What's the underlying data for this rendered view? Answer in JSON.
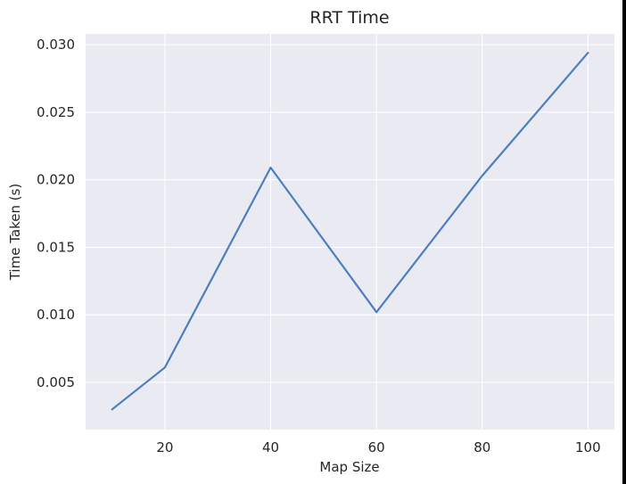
{
  "chart_data": {
    "type": "line",
    "title": "RRT Time",
    "xlabel": "Map Size",
    "ylabel": "Time Taken (s)",
    "x": [
      10,
      20,
      40,
      60,
      80,
      100
    ],
    "series": [
      {
        "values": [
          0.003,
          0.0061,
          0.0209,
          0.0102,
          0.0203,
          0.0294
        ],
        "color": "#4c7fbd"
      }
    ],
    "xlim": [
      5,
      105
    ],
    "ylim": [
      0.0015,
      0.0308
    ],
    "xticks": [
      20,
      40,
      60,
      80,
      100
    ],
    "xtick_labels": [
      "20",
      "40",
      "60",
      "80",
      "100"
    ],
    "yticks": [
      0.005,
      0.01,
      0.015,
      0.02,
      0.025,
      0.03
    ],
    "ytick_labels": [
      "0.005",
      "0.010",
      "0.015",
      "0.020",
      "0.025",
      "0.030"
    ],
    "grid": true,
    "background": "#eaeaf2",
    "grid_color": "#ffffff"
  }
}
